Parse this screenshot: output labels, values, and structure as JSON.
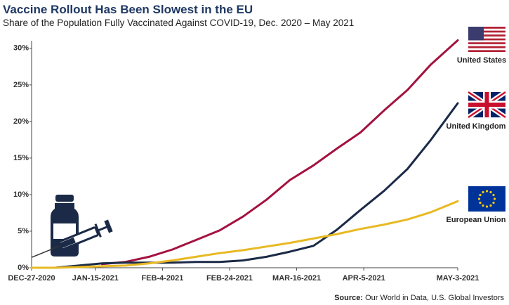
{
  "chart_data": {
    "type": "line",
    "title": "Vaccine Rollout Has Been Slowest in the EU",
    "subtitle": "Share of the Population Fully Vaccinated Against COVID-19, Dec. 2020 – May 2021",
    "source_label": "Source:",
    "source": "Our World in Data, U.S. Global Investors",
    "x": [
      "2020-12-27",
      "2021-01-03",
      "2021-01-10",
      "2021-01-17",
      "2021-01-24",
      "2021-01-31",
      "2021-02-07",
      "2021-02-14",
      "2021-02-21",
      "2021-02-28",
      "2021-03-07",
      "2021-03-14",
      "2021-03-21",
      "2021-03-28",
      "2021-04-04",
      "2021-04-11",
      "2021-04-18",
      "2021-04-25",
      "2021-05-03"
    ],
    "series": [
      {
        "name": "United States",
        "color": "#a4123f",
        "values": [
          null,
          null,
          null,
          0.5,
          0.8,
          1.5,
          2.5,
          3.8,
          5.1,
          7.0,
          9.3,
          12.0,
          14.0,
          16.3,
          18.5,
          21.5,
          24.3,
          27.8,
          31.1
        ]
      },
      {
        "name": "United Kingdom",
        "color": "#1b2a47",
        "values": [
          null,
          0,
          0.3,
          0.6,
          0.7,
          0.7,
          0.7,
          0.8,
          0.8,
          1.0,
          1.5,
          2.2,
          3.0,
          5.2,
          7.9,
          10.5,
          13.5,
          17.5,
          22.5
        ]
      },
      {
        "name": "European Union",
        "color": "#e8b923",
        "values": [
          0,
          0,
          0.1,
          0.2,
          0.3,
          0.6,
          1.0,
          1.5,
          2.0,
          2.4,
          2.9,
          3.4,
          4.0,
          4.6,
          5.3,
          5.9,
          6.6,
          7.6,
          9.1
        ]
      }
    ],
    "xlim": [
      "2020-12-27",
      "2021-05-03"
    ],
    "xticks": [
      {
        "value": "2020-12-27",
        "label": "DEC-27-2020"
      },
      {
        "value": "2021-01-15",
        "label": "JAN-15-2021"
      },
      {
        "value": "2021-02-04",
        "label": "FEB-4-2021"
      },
      {
        "value": "2021-02-24",
        "label": "FEB-24-2021"
      },
      {
        "value": "2021-03-16",
        "label": "MAR-16-2021"
      },
      {
        "value": "2021-04-05",
        "label": "APR-5-2021"
      },
      {
        "value": "2021-05-03",
        "label": "MAY-3-2021"
      }
    ],
    "ylim": [
      0,
      32
    ],
    "yticks": [
      {
        "value": 0,
        "label": "0%"
      },
      {
        "value": 5,
        "label": "5%"
      },
      {
        "value": 10,
        "label": "10%"
      },
      {
        "value": 15,
        "label": "15%"
      },
      {
        "value": 20,
        "label": "20%"
      },
      {
        "value": 25,
        "label": "25%"
      },
      {
        "value": 30,
        "label": "30%"
      }
    ],
    "grid": false
  }
}
